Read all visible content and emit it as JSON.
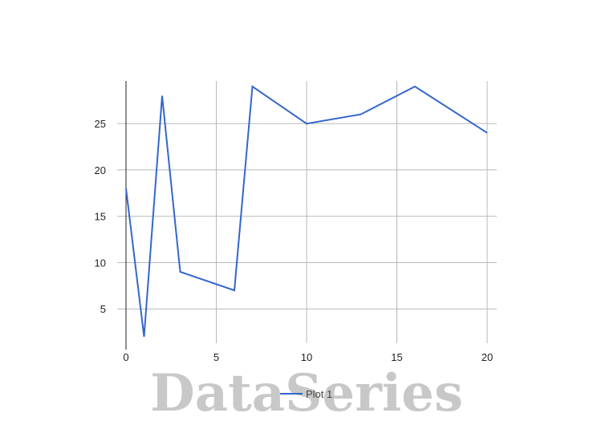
{
  "chart_data": {
    "type": "line",
    "x": [
      0,
      1,
      2,
      3,
      6,
      7,
      10,
      13,
      16,
      20
    ],
    "series": [
      {
        "name": "Plot 1",
        "values": [
          18,
          2,
          28,
          9,
          7,
          29,
          25,
          26,
          29,
          24
        ]
      }
    ],
    "xlim": [
      0,
      20
    ],
    "ylim": [
      1.3,
      29.6
    ],
    "xticks": [
      0,
      5,
      10,
      15,
      20
    ],
    "yticks": [
      5,
      10,
      15,
      20,
      25
    ],
    "grid": true,
    "legend_position": "bottom",
    "line_color": "#3366cc",
    "grid_color": "#b8b8b8",
    "watermark": "DataSeries"
  }
}
